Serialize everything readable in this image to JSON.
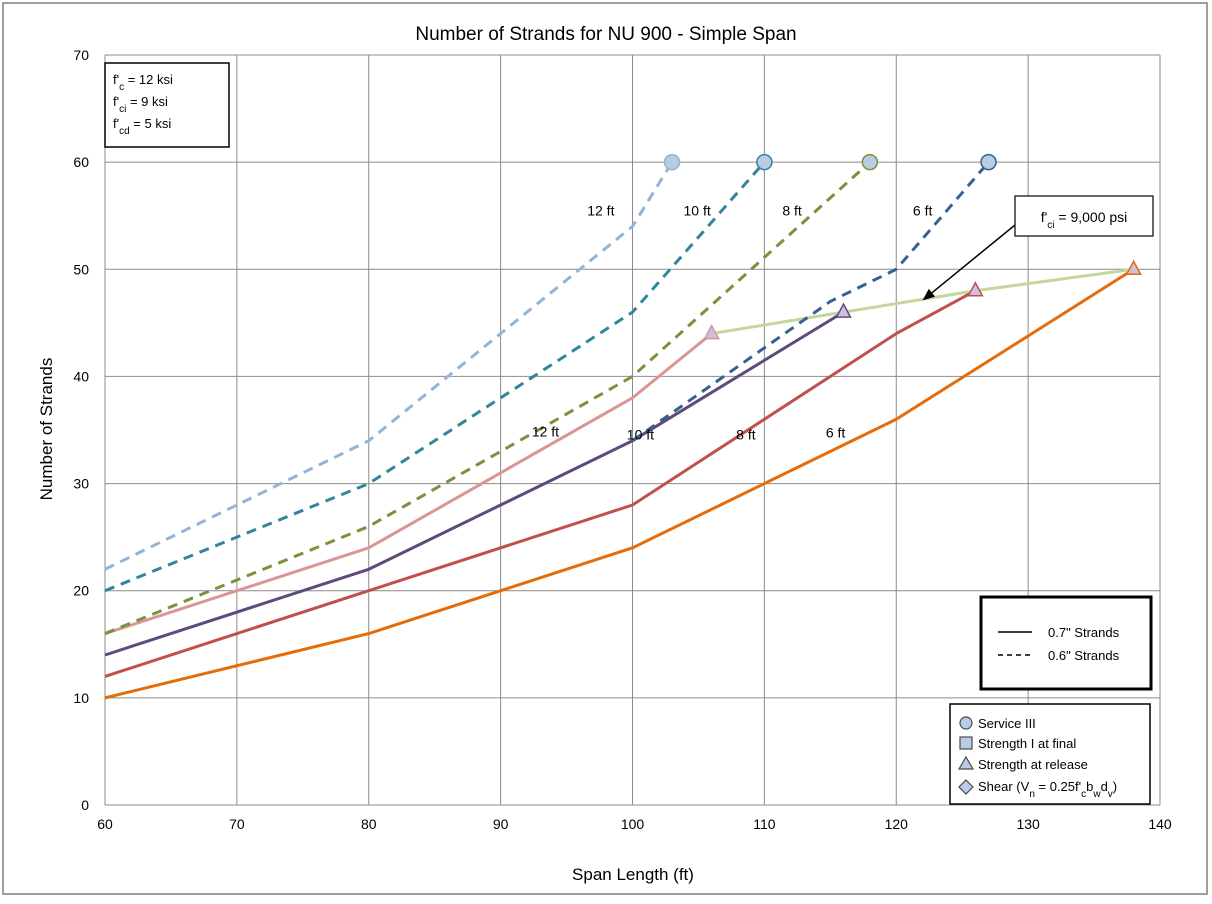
{
  "chart_data": {
    "type": "line",
    "title": "Number of Strands for NU 900 - Simple Span",
    "xlabel": "Span Length (ft)",
    "ylabel": "Number of Strands",
    "xlim": [
      60,
      140
    ],
    "ylim": [
      0,
      70
    ],
    "x_ticks": [
      60,
      70,
      80,
      90,
      100,
      110,
      120,
      130,
      140
    ],
    "y_ticks": [
      0,
      10,
      20,
      30,
      40,
      50,
      60,
      70
    ],
    "grid": true,
    "series": [
      {
        "name": "12 ft",
        "strand": "0.6\" Strands",
        "dash": true,
        "color": "#95b3d7",
        "x": [
          60,
          80,
          100,
          103
        ],
        "y": [
          22,
          34,
          54,
          60
        ],
        "end_marker": "circle"
      },
      {
        "name": "10 ft",
        "strand": "0.6\" Strands",
        "dash": true,
        "color": "#31859c",
        "x": [
          60,
          80,
          100,
          110
        ],
        "y": [
          20,
          30,
          46,
          60
        ],
        "end_marker": "circle"
      },
      {
        "name": "8 ft",
        "strand": "0.6\" Strands",
        "dash": true,
        "color": "#77933c",
        "x": [
          60,
          80,
          100,
          118
        ],
        "y": [
          16,
          26,
          40,
          60
        ],
        "end_marker": "circle"
      },
      {
        "name": "6 ft",
        "strand": "0.6\" Strands",
        "dash": true,
        "color": "#376092",
        "x": [
          100,
          115,
          120,
          127
        ],
        "y": [
          34,
          47,
          50,
          60
        ],
        "end_marker": "circle"
      },
      {
        "name": "12 ft",
        "strand": "0.7\" Strands",
        "dash": false,
        "color": "#d99694",
        "x": [
          60,
          80,
          100,
          106
        ],
        "y": [
          16,
          24,
          38,
          44
        ],
        "end_marker": "triangle"
      },
      {
        "name": "10 ft",
        "strand": "0.7\" Strands",
        "dash": false,
        "color": "#604a7b",
        "x": [
          60,
          80,
          100,
          116
        ],
        "y": [
          14,
          22,
          34,
          46
        ],
        "end_marker": "triangle"
      },
      {
        "name": "8 ft",
        "strand": "0.7\" Strands",
        "dash": false,
        "color": "#c0504d",
        "x": [
          60,
          80,
          100,
          120,
          126
        ],
        "y": [
          12,
          20,
          28,
          44,
          48
        ],
        "end_marker": "triangle"
      },
      {
        "name": "6 ft",
        "strand": "0.7\" Strands",
        "dash": false,
        "color": "#e46c0a",
        "x": [
          60,
          80,
          100,
          120,
          138
        ],
        "y": [
          10,
          16,
          24,
          36,
          50
        ],
        "end_marker": "triangle"
      },
      {
        "name": "f'ci = 9,000 psi",
        "strand": "",
        "dash": false,
        "color": "#c3d69b",
        "x": [
          106,
          116,
          126,
          138
        ],
        "y": [
          44,
          46,
          48,
          50
        ],
        "end_marker": "none"
      }
    ],
    "line_labels": [
      {
        "text": "12 ft",
        "x": 97.6,
        "y": 55
      },
      {
        "text": "10 ft",
        "x": 104.9,
        "y": 55
      },
      {
        "text": "8 ft",
        "x": 112.1,
        "y": 55
      },
      {
        "text": "6 ft",
        "x": 122,
        "y": 55
      },
      {
        "text": "12 ft",
        "x": 93.4,
        "y": 34.4
      },
      {
        "text": "10 ft",
        "x": 100.6,
        "y": 34.1
      },
      {
        "text": "8 ft",
        "x": 108.6,
        "y": 34.1
      },
      {
        "text": "6 ft",
        "x": 115.4,
        "y": 34.3
      }
    ],
    "annotation": {
      "text": "f'ci = 9,000 psi",
      "target_x": 122,
      "target_y": 47.1
    },
    "strength_box": [
      "f'c = 12 ksi",
      "f'ci = 9 ksi",
      "f'cd = 5 ksi"
    ],
    "legend_lines": [
      {
        "label": "0.7\" Strands",
        "dash": false
      },
      {
        "label": "0.6\" Strands",
        "dash": true
      }
    ],
    "legend_markers": [
      {
        "label": "Service III",
        "marker": "circle"
      },
      {
        "label": "Strength I at final",
        "marker": "square"
      },
      {
        "label": "Strength at release",
        "marker": "triangle"
      },
      {
        "label": "Shear (Vn = 0.25f'cbwdv)",
        "marker": "diamond"
      }
    ],
    "legend_placement": "bottom-right"
  }
}
